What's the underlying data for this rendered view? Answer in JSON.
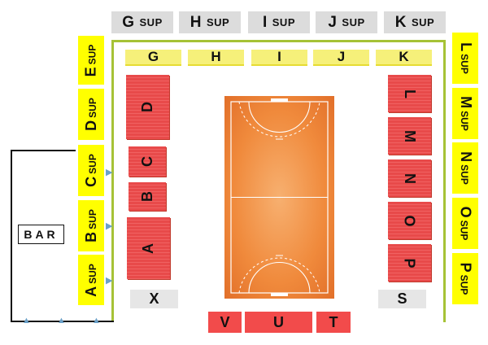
{
  "top_upper": [
    {
      "letter": "G",
      "sup": "SUP"
    },
    {
      "letter": "H",
      "sup": "SUP"
    },
    {
      "letter": "I",
      "sup": "SUP"
    },
    {
      "letter": "J",
      "sup": "SUP"
    },
    {
      "letter": "K",
      "sup": "SUP"
    }
  ],
  "top_lower": [
    "G",
    "H",
    "I",
    "J",
    "K"
  ],
  "left_upper": [
    {
      "letter": "E",
      "sup": "SUP"
    },
    {
      "letter": "D",
      "sup": "SUP"
    },
    {
      "letter": "C",
      "sup": "SUP"
    },
    {
      "letter": "B",
      "sup": "SUP"
    },
    {
      "letter": "A",
      "sup": "SUP"
    }
  ],
  "right_upper": [
    {
      "letter": "L",
      "sup": "SUP"
    },
    {
      "letter": "M",
      "sup": "SUP"
    },
    {
      "letter": "N",
      "sup": "SUP"
    },
    {
      "letter": "O",
      "sup": "SUP"
    },
    {
      "letter": "P",
      "sup": "SUP"
    }
  ],
  "left_blocks": [
    "D",
    "C",
    "B",
    "A"
  ],
  "right_blocks": [
    "L",
    "M",
    "N",
    "O",
    "P"
  ],
  "corner_left": "X",
  "corner_right": "S",
  "bottom_blocks": [
    "V",
    "U",
    "T"
  ],
  "bar_label": "BAR",
  "colors": {
    "upper_tier": "#dcdcdc",
    "section_strip": "#ffff00",
    "lower_block": "#f24b4b",
    "court": "#f08a3c",
    "border_line": "#a6c236"
  }
}
